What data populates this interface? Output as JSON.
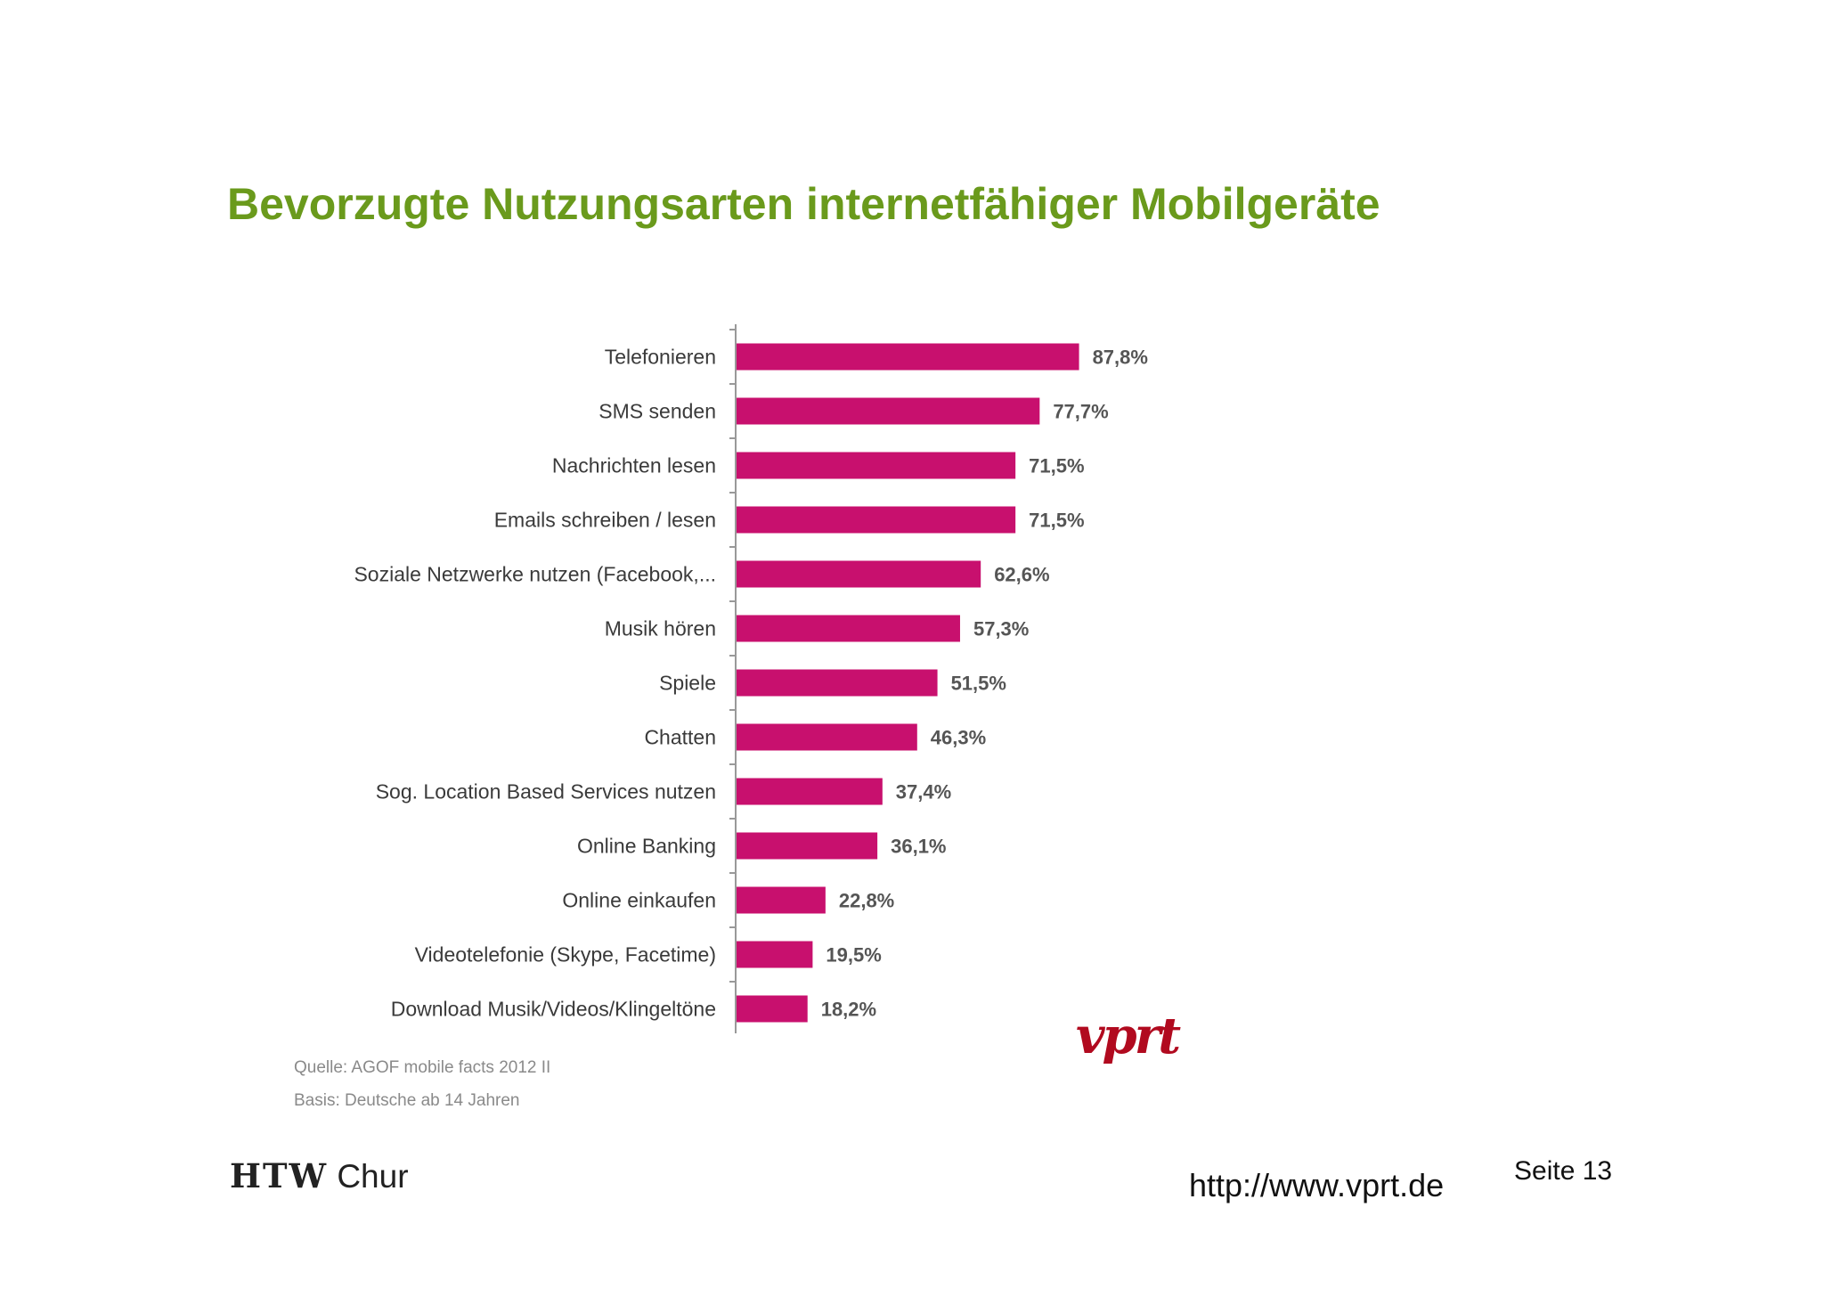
{
  "slide": {
    "title": "Bevorzugte Nutzungsarten internetfähiger Mobilgeräte",
    "source_line1": "Quelle: AGOF mobile facts 2012 II",
    "source_line2": "Basis: Deutsche ab 14 Jahren",
    "chart_logo": "vprt",
    "footer_logo_bold": "HTW",
    "footer_logo_rest": " Chur",
    "footer_url": "http://www.vprt.de",
    "footer_page": "Seite 13"
  },
  "chart_data": {
    "type": "bar",
    "orientation": "horizontal",
    "categories": [
      "Telefonieren",
      "SMS senden",
      "Nachrichten lesen",
      "Emails schreiben / lesen",
      "Soziale Netzwerke nutzen (Facebook,...",
      "Musik hören",
      "Spiele",
      "Chatten",
      "Sog. Location Based Services nutzen",
      "Online Banking",
      "Online einkaufen",
      "Videotelefonie (Skype, Facetime)",
      "Download Musik/Videos/Klingeltöne"
    ],
    "values": [
      87.8,
      77.7,
      71.5,
      71.5,
      62.6,
      57.3,
      51.5,
      46.3,
      37.4,
      36.1,
      22.8,
      19.5,
      18.2
    ],
    "value_labels": [
      "87,8%",
      "77,7%",
      "71,5%",
      "71,5%",
      "62,6%",
      "57,3%",
      "51,5%",
      "46,3%",
      "37,4%",
      "36,1%",
      "22,8%",
      "19,5%",
      "18,2%"
    ],
    "bar_color": "#c8106e",
    "xlim": [
      0,
      100
    ],
    "grid": false,
    "legend": "none"
  }
}
